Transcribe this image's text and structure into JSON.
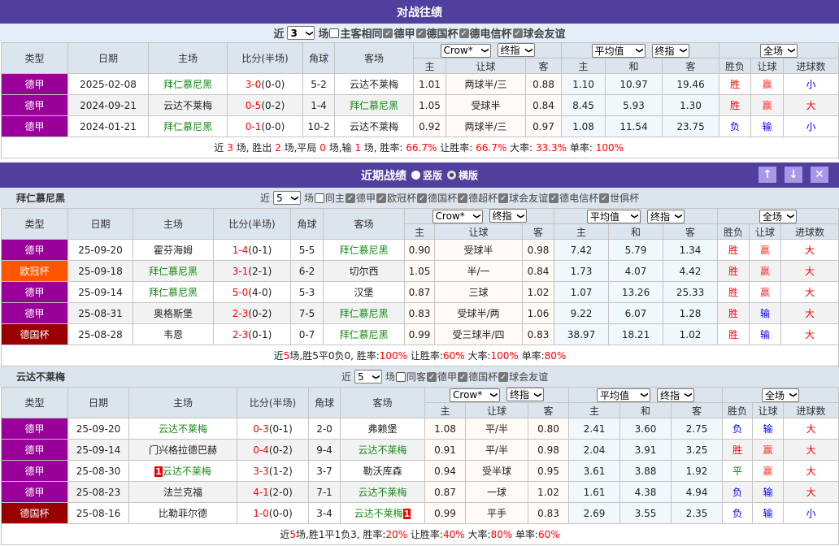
{
  "colors": {
    "header": "#503f9c",
    "league_bundesliga": "#990099",
    "league_ucl": "#ff5500",
    "league_dfb": "#990000",
    "team_highlight": "#1a8a1a"
  },
  "h2h": {
    "title": "对战往绩",
    "filter": {
      "near": "近",
      "count": "3",
      "games": "场",
      "same_home": "主客相同",
      "same_home_checked": false,
      "leagues": [
        {
          "label": "德甲",
          "checked": true
        },
        {
          "label": "德国杯",
          "checked": true
        },
        {
          "label": "德电信杯",
          "checked": true
        },
        {
          "label": "球会友谊",
          "checked": true
        }
      ]
    },
    "table": {
      "headers": [
        "类型",
        "日期",
        "主场",
        "比分(半场)",
        "角球",
        "客场"
      ],
      "selects": {
        "company": "Crow*",
        "odds_type": "终指",
        "euro": "平均值",
        "euro_type": "终指",
        "period": "全场"
      },
      "subheaders": [
        "主",
        "让球",
        "客",
        "主",
        "和",
        "客",
        "胜负",
        "让球",
        "进球数"
      ],
      "rows": [
        {
          "league": "德甲",
          "lc": "#990099",
          "date": "2025-02-08",
          "home": "拜仁慕尼黑",
          "home_hl": true,
          "score": "3-0",
          "half": "(0-0)",
          "corner": "5-2",
          "away": "云达不莱梅",
          "away_hl": false,
          "o1": "1.01",
          "hcp": "两球半/三",
          "o2": "0.88",
          "e1": "1.10",
          "ed": "10.97",
          "e2": "19.46",
          "wl": "胜",
          "ah": "赢",
          "ou": "小"
        },
        {
          "league": "德甲",
          "lc": "#990099",
          "date": "2024-09-21",
          "home": "云达不莱梅",
          "home_hl": false,
          "score": "0-5",
          "half": "(0-2)",
          "corner": "1-4",
          "away": "拜仁慕尼黑",
          "away_hl": true,
          "o1": "1.05",
          "hcp": "受球半",
          "o2": "0.84",
          "e1": "8.45",
          "ed": "5.93",
          "e2": "1.30",
          "wl": "胜",
          "ah": "赢",
          "ou": "大"
        },
        {
          "league": "德甲",
          "lc": "#990099",
          "date": "2024-01-21",
          "home": "拜仁慕尼黑",
          "home_hl": true,
          "score": "0-1",
          "half": "(0-0)",
          "corner": "10-2",
          "away": "云达不莱梅",
          "away_hl": false,
          "o1": "0.92",
          "hcp": "两球半/三",
          "o2": "0.97",
          "e1": "1.08",
          "ed": "11.54",
          "e2": "23.75",
          "wl": "负",
          "ah": "输",
          "ou": "小"
        }
      ],
      "summary": [
        {
          "t": "近 "
        },
        {
          "t": "3",
          "r": 1
        },
        {
          "t": " 场, 胜出 "
        },
        {
          "t": "2",
          "r": 1
        },
        {
          "t": " 场,平局 "
        },
        {
          "t": "0",
          "r": 1
        },
        {
          "t": " 场,输 "
        },
        {
          "t": "1",
          "r": 1
        },
        {
          "t": " 场, 胜率: "
        },
        {
          "t": "66.7%",
          "r": 1
        },
        {
          "t": " 让胜率: "
        },
        {
          "t": "66.7%",
          "r": 1
        },
        {
          "t": " 大率: "
        },
        {
          "t": "33.3%",
          "r": 1
        },
        {
          "t": " 单率: "
        },
        {
          "t": "100%",
          "r": 1
        }
      ]
    }
  },
  "recent": {
    "title": "近期战绩",
    "view_vertical": "竖版",
    "view_horizontal": "横版",
    "selected_view": "横版",
    "teams": [
      {
        "name": "拜仁慕尼黑",
        "filter": {
          "near": "近",
          "count": "5",
          "games": "场",
          "same": "同主",
          "same_checked": false,
          "leagues": [
            {
              "label": "德甲",
              "checked": true
            },
            {
              "label": "欧冠杯",
              "checked": true
            },
            {
              "label": "德国杯",
              "checked": true
            },
            {
              "label": "德超杯",
              "checked": true
            },
            {
              "label": "球会友谊",
              "checked": true
            },
            {
              "label": "德电信杯",
              "checked": true
            },
            {
              "label": "世俱杯",
              "checked": true
            }
          ]
        },
        "headers": [
          "类型",
          "日期",
          "主场",
          "比分(半场)",
          "角球",
          "客场"
        ],
        "selects": {
          "company": "Crow*",
          "odds_type": "终指",
          "euro": "平均值",
          "euro_type": "终指",
          "period": "全场"
        },
        "subheaders": [
          "主",
          "让球",
          "客",
          "主",
          "和",
          "客",
          "胜负",
          "让球",
          "进球数"
        ],
        "rows": [
          {
            "league": "德甲",
            "lc": "#990099",
            "date": "25-09-20",
            "home": "霍芬海姆",
            "home_hl": false,
            "score": "1-4",
            "half": "(0-1)",
            "corner": "5-5",
            "away": "拜仁慕尼黑",
            "away_hl": true,
            "o1": "0.90",
            "hcp": "受球半",
            "o2": "0.98",
            "e1": "7.42",
            "ed": "5.79",
            "e2": "1.34",
            "wl": "胜",
            "ah": "赢",
            "ou": "大"
          },
          {
            "league": "欧冠杯",
            "lc": "#ff5500",
            "date": "25-09-18",
            "home": "拜仁慕尼黑",
            "home_hl": true,
            "score": "3-1",
            "half": "(2-1)",
            "corner": "6-2",
            "away": "切尔西",
            "away_hl": false,
            "o1": "1.05",
            "hcp": "半/一",
            "o2": "0.84",
            "e1": "1.73",
            "ed": "4.07",
            "e2": "4.42",
            "wl": "胜",
            "ah": "赢",
            "ou": "大"
          },
          {
            "league": "德甲",
            "lc": "#990099",
            "date": "25-09-14",
            "home": "拜仁慕尼黑",
            "home_hl": true,
            "score": "5-0",
            "half": "(4-0)",
            "corner": "5-3",
            "away": "汉堡",
            "away_hl": false,
            "o1": "0.87",
            "hcp": "三球",
            "o2": "1.02",
            "e1": "1.07",
            "ed": "13.26",
            "e2": "25.33",
            "wl": "胜",
            "ah": "赢",
            "ou": "大"
          },
          {
            "league": "德甲",
            "lc": "#990099",
            "date": "25-08-31",
            "home": "奥格斯堡",
            "home_hl": false,
            "score": "2-3",
            "half": "(0-2)",
            "corner": "7-5",
            "away": "拜仁慕尼黑",
            "away_hl": true,
            "o1": "0.83",
            "hcp": "受球半/两",
            "o2": "1.06",
            "e1": "9.22",
            "ed": "6.07",
            "e2": "1.28",
            "wl": "胜",
            "ah": "输",
            "ou": "大"
          },
          {
            "league": "德国杯",
            "lc": "#990000",
            "date": "25-08-28",
            "home": "韦恩",
            "home_hl": false,
            "score": "2-3",
            "half": "(0-1)",
            "corner": "0-7",
            "away": "拜仁慕尼黑",
            "away_hl": true,
            "o1": "0.99",
            "hcp": "受三球半/四",
            "o2": "0.83",
            "e1": "38.97",
            "ed": "18.21",
            "e2": "1.02",
            "wl": "胜",
            "ah": "输",
            "ou": "大"
          }
        ],
        "summary": [
          {
            "t": "近"
          },
          {
            "t": "5",
            "r": 1
          },
          {
            "t": "场,胜5平0负0, 胜率:"
          },
          {
            "t": "100%",
            "r": 1
          },
          {
            "t": " 让胜率:"
          },
          {
            "t": "60%",
            "r": 1
          },
          {
            "t": " 大率:"
          },
          {
            "t": "100%",
            "r": 1
          },
          {
            "t": " 单率:"
          },
          {
            "t": "80%",
            "r": 1
          }
        ]
      },
      {
        "name": "云达不莱梅",
        "filter": {
          "near": "近",
          "count": "5",
          "games": "场",
          "same": "同客",
          "same_checked": false,
          "leagues": [
            {
              "label": "德甲",
              "checked": true
            },
            {
              "label": "德国杯",
              "checked": true
            },
            {
              "label": "球会友谊",
              "checked": true
            }
          ]
        },
        "headers": [
          "类型",
          "日期",
          "主场",
          "比分(半场)",
          "角球",
          "客场"
        ],
        "selects": {
          "company": "Crow*",
          "odds_type": "终指",
          "euro": "平均值",
          "euro_type": "终指",
          "period": "全场"
        },
        "subheaders": [
          "主",
          "让球",
          "客",
          "主",
          "和",
          "客",
          "胜负",
          "让球",
          "进球数"
        ],
        "rows": [
          {
            "league": "德甲",
            "lc": "#990099",
            "date": "25-09-20",
            "home": "云达不莱梅",
            "home_hl": true,
            "score": "0-3",
            "half": "(0-1)",
            "corner": "2-0",
            "away": "弗赖堡",
            "away_hl": false,
            "o1": "1.08",
            "hcp": "平/半",
            "o2": "0.80",
            "e1": "2.41",
            "ed": "3.60",
            "e2": "2.75",
            "wl": "负",
            "ah": "输",
            "ou": "大"
          },
          {
            "league": "德甲",
            "lc": "#990099",
            "date": "25-09-14",
            "home": "门兴格拉德巴赫",
            "home_hl": false,
            "score": "0-4",
            "half": "(0-2)",
            "corner": "9-4",
            "away": "云达不莱梅",
            "away_hl": true,
            "o1": "0.91",
            "hcp": "平/半",
            "o2": "0.98",
            "e1": "2.04",
            "ed": "3.91",
            "e2": "3.25",
            "wl": "胜",
            "ah": "赢",
            "ou": "大"
          },
          {
            "league": "德甲",
            "lc": "#990099",
            "date": "25-08-30",
            "home": "云达不莱梅",
            "home_hl": true,
            "home_badge": "1",
            "score": "3-3",
            "half": "(1-2)",
            "corner": "3-7",
            "away": "勒沃库森",
            "away_hl": false,
            "o1": "0.94",
            "hcp": "受半球",
            "o2": "0.95",
            "e1": "3.61",
            "ed": "3.88",
            "e2": "1.92",
            "wl": "平",
            "ah": "赢",
            "ou": "大"
          },
          {
            "league": "德甲",
            "lc": "#990099",
            "date": "25-08-23",
            "home": "法兰克福",
            "home_hl": false,
            "score": "4-1",
            "half": "(2-0)",
            "corner": "7-1",
            "away": "云达不莱梅",
            "away_hl": true,
            "o1": "0.87",
            "hcp": "一球",
            "o2": "1.02",
            "e1": "1.61",
            "ed": "4.38",
            "e2": "4.94",
            "wl": "负",
            "ah": "输",
            "ou": "大"
          },
          {
            "league": "德国杯",
            "lc": "#990000",
            "date": "25-08-16",
            "home": "比勒菲尔德",
            "home_hl": false,
            "score": "1-0",
            "half": "(0-0)",
            "corner": "3-4",
            "away": "云达不莱梅",
            "away_hl": true,
            "away_badge": "1",
            "o1": "0.99",
            "hcp": "平手",
            "o2": "0.83",
            "e1": "2.69",
            "ed": "3.55",
            "e2": "2.35",
            "wl": "负",
            "ah": "输",
            "ou": "小"
          }
        ],
        "summary": [
          {
            "t": "近"
          },
          {
            "t": "5",
            "r": 1
          },
          {
            "t": "场,胜1平1负3, 胜率:"
          },
          {
            "t": "20%",
            "r": 1
          },
          {
            "t": " 让胜率:"
          },
          {
            "t": "40%",
            "r": 1
          },
          {
            "t": " 大率:"
          },
          {
            "t": "80%",
            "r": 1
          },
          {
            "t": " 单率:"
          },
          {
            "t": "60%",
            "r": 1
          }
        ]
      }
    ]
  }
}
